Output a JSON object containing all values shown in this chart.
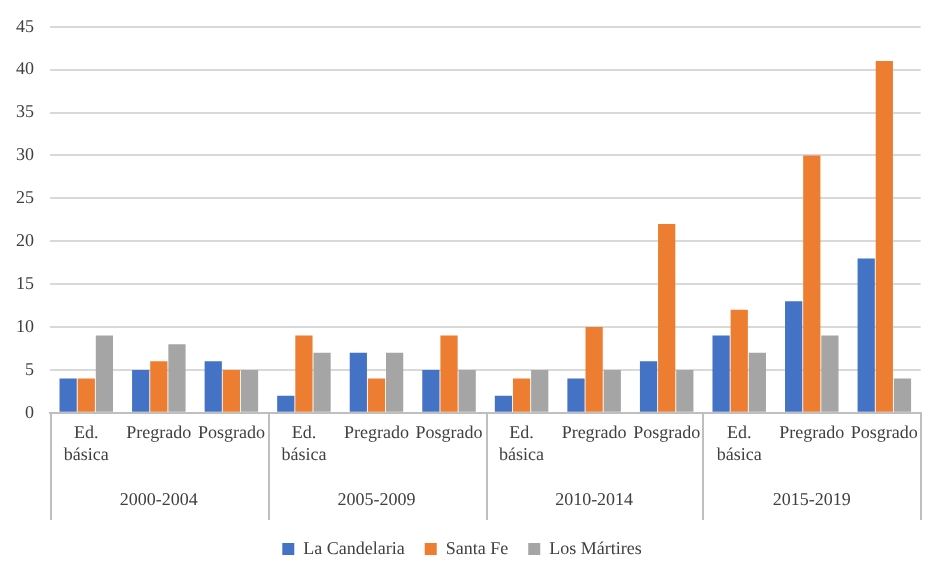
{
  "chart_data": {
    "type": "bar",
    "categories": [
      "Ed. básica",
      "Pregrado",
      "Posgrado",
      "Ed. básica",
      "Pregrado",
      "Posgrado",
      "Ed. básica",
      "Pregrado",
      "Posgrado",
      "Ed. básica",
      "Pregrado",
      "Posgrado"
    ],
    "series": [
      {
        "name": "La Candelaria",
        "color": "#4472c4",
        "values": [
          4,
          5,
          6,
          2,
          7,
          5,
          2,
          4,
          6,
          9,
          13,
          18
        ]
      },
      {
        "name": "Santa Fe",
        "color": "#ed7d31",
        "values": [
          4,
          6,
          5,
          9,
          4,
          9,
          4,
          10,
          22,
          12,
          30,
          41
        ]
      },
      {
        "name": "Los Mártires",
        "color": "#a5a5a5",
        "values": [
          9,
          8,
          5,
          7,
          7,
          5,
          5,
          5,
          5,
          7,
          9,
          4
        ]
      }
    ],
    "annotations": [
      "2000-2004",
      "2005-2009",
      "2010-2014",
      "2015-2019"
    ],
    "ylim": [
      0,
      45
    ],
    "yticks": [
      0,
      5,
      10,
      15,
      20,
      25,
      30,
      35,
      40,
      45
    ],
    "grid": "y",
    "legend": "bottom"
  }
}
